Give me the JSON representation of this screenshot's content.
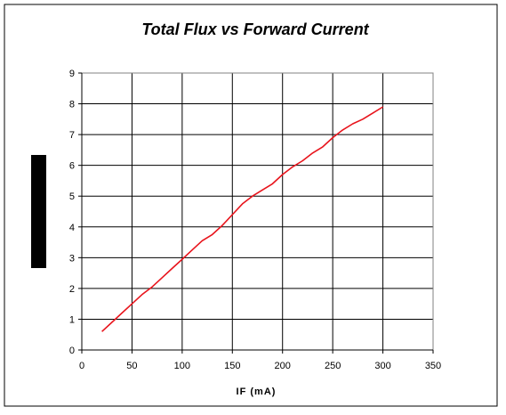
{
  "chart_data": {
    "type": "line",
    "title": "Total Flux vs Forward Current",
    "xlabel": "IF (mA)",
    "ylabel": "",
    "xlim": [
      0,
      350
    ],
    "ylim": [
      0,
      9
    ],
    "x_ticks": [
      "0",
      "50",
      "100",
      "150",
      "200",
      "250",
      "300",
      "350"
    ],
    "y_ticks": [
      "0",
      "1",
      "2",
      "3",
      "4",
      "5",
      "6",
      "7",
      "8",
      "9"
    ],
    "grid": true,
    "legend": "none",
    "series": [
      {
        "color": "#e8141c",
        "x": [
          20,
          30,
          40,
          50,
          60,
          70,
          80,
          90,
          100,
          110,
          120,
          130,
          140,
          150,
          160,
          170,
          180,
          190,
          200,
          210,
          220,
          230,
          240,
          250,
          260,
          270,
          280,
          290,
          300
        ],
        "y": [
          0.6,
          0.9,
          1.2,
          1.5,
          1.8,
          2.05,
          2.35,
          2.65,
          2.95,
          3.25,
          3.55,
          3.75,
          4.05,
          4.4,
          4.75,
          5.0,
          5.2,
          5.4,
          5.7,
          5.95,
          6.15,
          6.4,
          6.6,
          6.9,
          7.15,
          7.35,
          7.5,
          7.7,
          7.9
        ]
      }
    ]
  }
}
